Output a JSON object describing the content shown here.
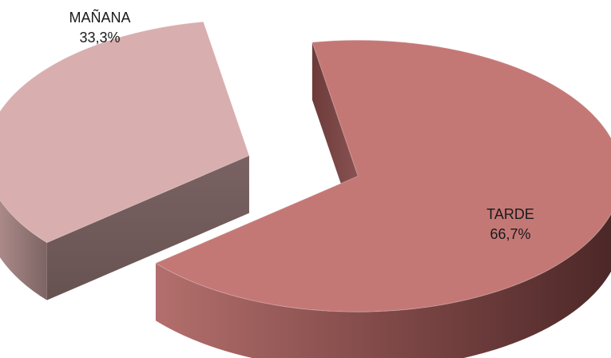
{
  "chart_data": {
    "type": "pie",
    "title": "",
    "three_d": true,
    "exploded": true,
    "slices": [
      {
        "label": "MAÑANA",
        "value": 33.3,
        "value_label": "33,3%",
        "color": "#d9aeae"
      },
      {
        "label": "TARDE",
        "value": 66.7,
        "value_label": "66,7%",
        "color": "#c47876"
      }
    ],
    "legend": "none"
  }
}
